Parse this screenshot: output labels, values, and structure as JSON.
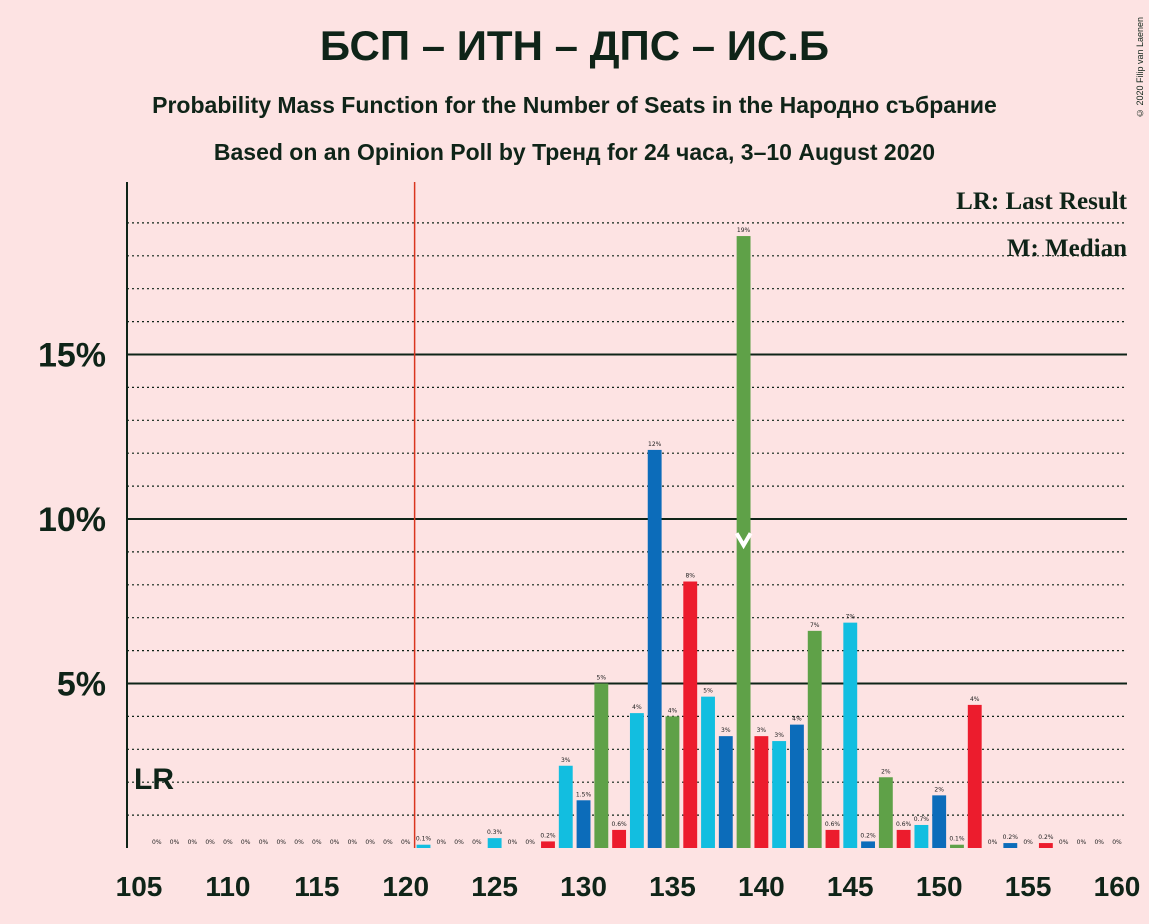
{
  "title": "БСП – ИТН – ДПС – ИС.Б",
  "subtitle": "Probability Mass Function for the Number of Seats in the Народно събрание",
  "subtitle2": "Based on an Opinion Poll by Тренд for 24 часа, 3–10 August 2020",
  "copyright": "© 2020 Filip van Laenen",
  "colors": {
    "background": "#FDE3E3",
    "green": "#5FA148",
    "blue": "#0C6CBA",
    "cyan": "#12BEE0",
    "red": "#EC1C2D",
    "lr_line": "#D9351F",
    "text": "#0F2418"
  },
  "chart_data": {
    "type": "bar",
    "title": "БСП – ИТН – ДПС – ИС.Б",
    "xlabel": "",
    "ylabel": "",
    "xlim": [
      105,
      160
    ],
    "ylim": [
      0,
      20
    ],
    "x_ticks": [
      105,
      110,
      115,
      120,
      125,
      130,
      135,
      140,
      145,
      150,
      155,
      160
    ],
    "y_ticks": [
      {
        "value": 5,
        "label": "5%"
      },
      {
        "value": 10,
        "label": "10%"
      },
      {
        "value": 15,
        "label": "15%"
      }
    ],
    "gridlines": "dotted every 1%, solid at 5%, 10%, 15%",
    "last_result": {
      "seats": 121,
      "label": "LR"
    },
    "median": {
      "seats": 139,
      "label": "M"
    },
    "legend": [
      "LR: Last Result",
      "M: Median"
    ],
    "legend_position": "top-right",
    "bars": [
      {
        "seats": 106,
        "value": 0,
        "label": "0%",
        "color": "cyan"
      },
      {
        "seats": 107,
        "value": 0,
        "label": "0%",
        "color": "green"
      },
      {
        "seats": 108,
        "value": 0,
        "label": "0%",
        "color": "red"
      },
      {
        "seats": 109,
        "value": 0,
        "label": "0%",
        "color": "cyan"
      },
      {
        "seats": 110,
        "value": 0,
        "label": "0%",
        "color": "blue"
      },
      {
        "seats": 111,
        "value": 0,
        "label": "0%",
        "color": "green"
      },
      {
        "seats": 112,
        "value": 0,
        "label": "0%",
        "color": "red"
      },
      {
        "seats": 113,
        "value": 0,
        "label": "0%",
        "color": "cyan"
      },
      {
        "seats": 114,
        "value": 0,
        "label": "0%",
        "color": "blue"
      },
      {
        "seats": 115,
        "value": 0,
        "label": "0%",
        "color": "green"
      },
      {
        "seats": 116,
        "value": 0,
        "label": "0%",
        "color": "red"
      },
      {
        "seats": 117,
        "value": 0,
        "label": "0%",
        "color": "cyan"
      },
      {
        "seats": 118,
        "value": 0,
        "label": "0%",
        "color": "blue"
      },
      {
        "seats": 119,
        "value": 0,
        "label": "0%",
        "color": "green"
      },
      {
        "seats": 120,
        "value": 0,
        "label": "0%",
        "color": "red"
      },
      {
        "seats": 121,
        "value": 0.1,
        "label": "0.1%",
        "color": "cyan"
      },
      {
        "seats": 122,
        "value": 0,
        "label": "0%",
        "color": "blue"
      },
      {
        "seats": 123,
        "value": 0,
        "label": "0%",
        "color": "green"
      },
      {
        "seats": 124,
        "value": 0,
        "label": "0%",
        "color": "red"
      },
      {
        "seats": 125,
        "value": 0.3,
        "label": "0.3%",
        "color": "cyan"
      },
      {
        "seats": 126,
        "value": 0,
        "label": "0%",
        "color": "blue"
      },
      {
        "seats": 127,
        "value": 0,
        "label": "0%",
        "color": "green"
      },
      {
        "seats": 128,
        "value": 0.2,
        "label": "0.2%",
        "color": "red"
      },
      {
        "seats": 129,
        "value": 2.5,
        "label": "3%",
        "color": "cyan"
      },
      {
        "seats": 130,
        "value": 1.45,
        "label": "1.5%",
        "color": "blue"
      },
      {
        "seats": 131,
        "value": 5.0,
        "label": "5%",
        "color": "green"
      },
      {
        "seats": 132,
        "value": 0.55,
        "label": "0.6%",
        "color": "red"
      },
      {
        "seats": 133,
        "value": 4.1,
        "label": "4%",
        "color": "cyan"
      },
      {
        "seats": 134,
        "value": 12.1,
        "label": "12%",
        "color": "blue"
      },
      {
        "seats": 135,
        "value": 4.0,
        "label": "4%",
        "color": "green"
      },
      {
        "seats": 136,
        "value": 8.1,
        "label": "8%",
        "color": "red"
      },
      {
        "seats": 137,
        "value": 4.6,
        "label": "5%",
        "color": "cyan"
      },
      {
        "seats": 138,
        "value": 3.4,
        "label": "3%",
        "color": "blue"
      },
      {
        "seats": 139,
        "value": 18.6,
        "label": "19%",
        "color": "green"
      },
      {
        "seats": 140,
        "value": 3.4,
        "label": "3%",
        "color": "red"
      },
      {
        "seats": 141,
        "value": 3.25,
        "label": "3%",
        "color": "cyan"
      },
      {
        "seats": 142,
        "value": 3.75,
        "label": "4%",
        "color": "blue"
      },
      {
        "seats": 143,
        "value": 6.6,
        "label": "7%",
        "color": "green"
      },
      {
        "seats": 144,
        "value": 0.55,
        "label": "0.6%",
        "color": "red"
      },
      {
        "seats": 145,
        "value": 6.85,
        "label": "7%",
        "color": "cyan"
      },
      {
        "seats": 146,
        "value": 0.2,
        "label": "0.2%",
        "color": "blue"
      },
      {
        "seats": 147,
        "value": 2.15,
        "label": "2%",
        "color": "green"
      },
      {
        "seats": 148,
        "value": 0.55,
        "label": "0.6%",
        "color": "red"
      },
      {
        "seats": 149,
        "value": 0.7,
        "label": "0.7%",
        "color": "cyan"
      },
      {
        "seats": 150,
        "value": 1.6,
        "label": "2%",
        "color": "blue"
      },
      {
        "seats": 151,
        "value": 0.1,
        "label": "0.1%",
        "color": "green"
      },
      {
        "seats": 152,
        "value": 4.35,
        "label": "4%",
        "color": "red"
      },
      {
        "seats": 153,
        "value": 0,
        "label": "0%",
        "color": "cyan"
      },
      {
        "seats": 154,
        "value": 0.15,
        "label": "0.2%",
        "color": "blue"
      },
      {
        "seats": 155,
        "value": 0,
        "label": "0%",
        "color": "green"
      },
      {
        "seats": 156,
        "value": 0.15,
        "label": "0.2%",
        "color": "red"
      },
      {
        "seats": 157,
        "value": 0,
        "label": "0%",
        "color": "cyan"
      },
      {
        "seats": 158,
        "value": 0,
        "label": "0%",
        "color": "blue"
      },
      {
        "seats": 159,
        "value": 0,
        "label": "0%",
        "color": "green"
      },
      {
        "seats": 160,
        "value": 0,
        "label": "0%",
        "color": "red"
      }
    ]
  }
}
